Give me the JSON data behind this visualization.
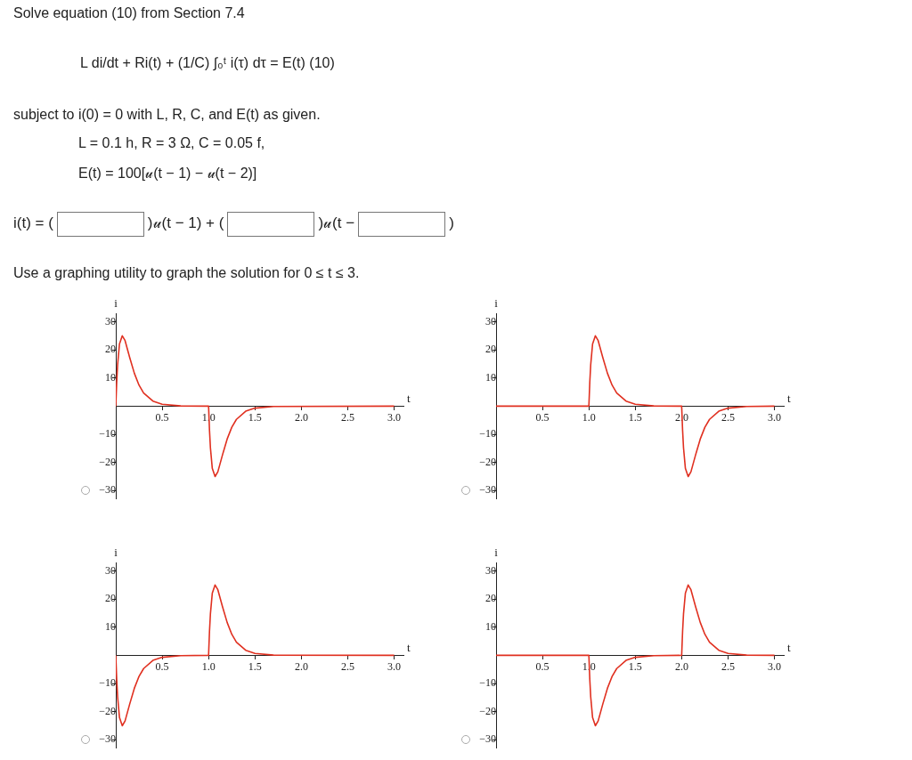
{
  "chart_data": [
    {
      "type": "other",
      "title": "Solve equation (10) from Section 7.4",
      "annotations": [
        "L di/dt + Ri(t) + (1/C) ∫₀ᵗ i(τ) dτ = E(t)    (10)",
        "subject to i(0) = 0 with L, R, C, and E(t) as given.",
        "L = 0.1 h, R = 3 Ω, C = 0.05 f,",
        "E(t) = 100[𝓊(t − 1) − 𝓊(t − 2)]",
        "i(t) = (",
        ")𝓊(t − 1) + (",
        ")𝓊(t −",
        ")",
        "Use a graphing utility to graph the solution for 0 ≤ t ≤ 3."
      ]
    },
    {
      "type": "line",
      "xlabel": "t",
      "ylabel": "i",
      "color": "#e03020",
      "marker": "none",
      "grid": false,
      "legend": false,
      "xlim": [
        0,
        3.1
      ],
      "ylim": [
        -33,
        33
      ],
      "xticks": [
        0.5,
        {
          "value": 1,
          "label": "1.0"
        },
        1.5,
        {
          "value": 2,
          "label": "2.0"
        },
        2.5,
        {
          "value": 3,
          "label": "3.0"
        }
      ],
      "yticks": [
        {
          "value": -30,
          "label": "−30"
        },
        {
          "value": -20,
          "label": "−20"
        },
        {
          "value": -10,
          "label": "−10"
        },
        10,
        20,
        30
      ],
      "x": [
        0,
        0.01,
        0.02,
        0.04,
        0.07,
        0.1,
        0.15,
        0.2,
        0.25,
        0.3,
        0.4,
        0.5,
        0.7,
        1,
        1.01,
        1.02,
        1.04,
        1.07,
        1.1,
        1.15,
        1.2,
        1.25,
        1.3,
        1.4,
        1.5,
        1.7,
        3
      ],
      "values": [
        0,
        8.6,
        14.8,
        22.1,
        25,
        23.3,
        17.3,
        11.7,
        7.5,
        4.7,
        1.8,
        0.7,
        0.1,
        0,
        -8.6,
        -14.8,
        -22.1,
        -25,
        -23.3,
        -17.3,
        -11.7,
        -7.5,
        -4.7,
        -1.8,
        -0.7,
        -0.1,
        0
      ]
    },
    {
      "type": "line",
      "xlabel": "t",
      "ylabel": "i",
      "color": "#e03020",
      "marker": "none",
      "grid": false,
      "legend": false,
      "xlim": [
        0,
        3.1
      ],
      "ylim": [
        -33,
        33
      ],
      "xticks": [
        0.5,
        {
          "value": 1,
          "label": "1.0"
        },
        1.5,
        {
          "value": 2,
          "label": "2.0"
        },
        2.5,
        {
          "value": 3,
          "label": "3.0"
        }
      ],
      "yticks": [
        {
          "value": -30,
          "label": "−30"
        },
        {
          "value": -20,
          "label": "−20"
        },
        {
          "value": -10,
          "label": "−10"
        },
        10,
        20,
        30
      ],
      "x": [
        0,
        1,
        1.01,
        1.02,
        1.04,
        1.07,
        1.1,
        1.15,
        1.2,
        1.25,
        1.3,
        1.4,
        1.5,
        1.7,
        2,
        2.01,
        2.02,
        2.04,
        2.07,
        2.1,
        2.15,
        2.2,
        2.25,
        2.3,
        2.4,
        2.5,
        2.7,
        3
      ],
      "values": [
        0,
        0,
        8.6,
        14.8,
        22.1,
        25,
        23.3,
        17.3,
        11.7,
        7.5,
        4.7,
        1.8,
        0.7,
        0.1,
        0,
        -8.6,
        -14.8,
        -22.1,
        -25,
        -23.3,
        -17.3,
        -11.7,
        -7.5,
        -4.7,
        -1.8,
        -0.7,
        -0.1,
        0
      ]
    },
    {
      "type": "line",
      "xlabel": "t",
      "ylabel": "i",
      "color": "#e03020",
      "marker": "none",
      "grid": false,
      "legend": false,
      "xlim": [
        0,
        3.1
      ],
      "ylim": [
        -33,
        33
      ],
      "xticks": [
        0.5,
        {
          "value": 1,
          "label": "1.0"
        },
        1.5,
        {
          "value": 2,
          "label": "2.0"
        },
        2.5,
        {
          "value": 3,
          "label": "3.0"
        }
      ],
      "yticks": [
        {
          "value": -30,
          "label": "−30"
        },
        {
          "value": -20,
          "label": "−20"
        },
        {
          "value": -10,
          "label": "−10"
        },
        10,
        20,
        30
      ],
      "x": [
        0,
        0.01,
        0.02,
        0.04,
        0.07,
        0.1,
        0.15,
        0.2,
        0.25,
        0.3,
        0.4,
        0.5,
        0.7,
        1,
        1.01,
        1.02,
        1.04,
        1.07,
        1.1,
        1.15,
        1.2,
        1.25,
        1.3,
        1.4,
        1.5,
        1.7,
        3
      ],
      "values": [
        0,
        -8.6,
        -14.8,
        -22.1,
        -25,
        -23.3,
        -17.3,
        -11.7,
        -7.5,
        -4.7,
        -1.8,
        -0.7,
        -0.1,
        0,
        8.6,
        14.8,
        22.1,
        25,
        23.3,
        17.3,
        11.7,
        7.5,
        4.7,
        1.8,
        0.7,
        0.1,
        0
      ]
    },
    {
      "type": "line",
      "xlabel": "t",
      "ylabel": "i",
      "color": "#e03020",
      "marker": "none",
      "grid": false,
      "legend": false,
      "xlim": [
        0,
        3.1
      ],
      "ylim": [
        -33,
        33
      ],
      "xticks": [
        0.5,
        {
          "value": 1,
          "label": "1.0"
        },
        1.5,
        {
          "value": 2,
          "label": "2.0"
        },
        2.5,
        {
          "value": 3,
          "label": "3.0"
        }
      ],
      "yticks": [
        {
          "value": -30,
          "label": "−30"
        },
        {
          "value": -20,
          "label": "−20"
        },
        {
          "value": -10,
          "label": "−10"
        },
        10,
        20,
        30
      ],
      "x": [
        0,
        1,
        1.01,
        1.02,
        1.04,
        1.07,
        1.1,
        1.15,
        1.2,
        1.25,
        1.3,
        1.4,
        1.5,
        1.7,
        2,
        2.01,
        2.02,
        2.04,
        2.07,
        2.1,
        2.15,
        2.2,
        2.25,
        2.3,
        2.4,
        2.5,
        2.7,
        3
      ],
      "values": [
        0,
        0,
        -8.6,
        -14.8,
        -22.1,
        -25,
        -23.3,
        -17.3,
        -11.7,
        -7.5,
        -4.7,
        -1.8,
        -0.7,
        -0.1,
        0,
        8.6,
        14.8,
        22.1,
        25,
        23.3,
        17.3,
        11.7,
        7.5,
        4.7,
        1.8,
        0.7,
        0.1,
        0
      ]
    }
  ]
}
